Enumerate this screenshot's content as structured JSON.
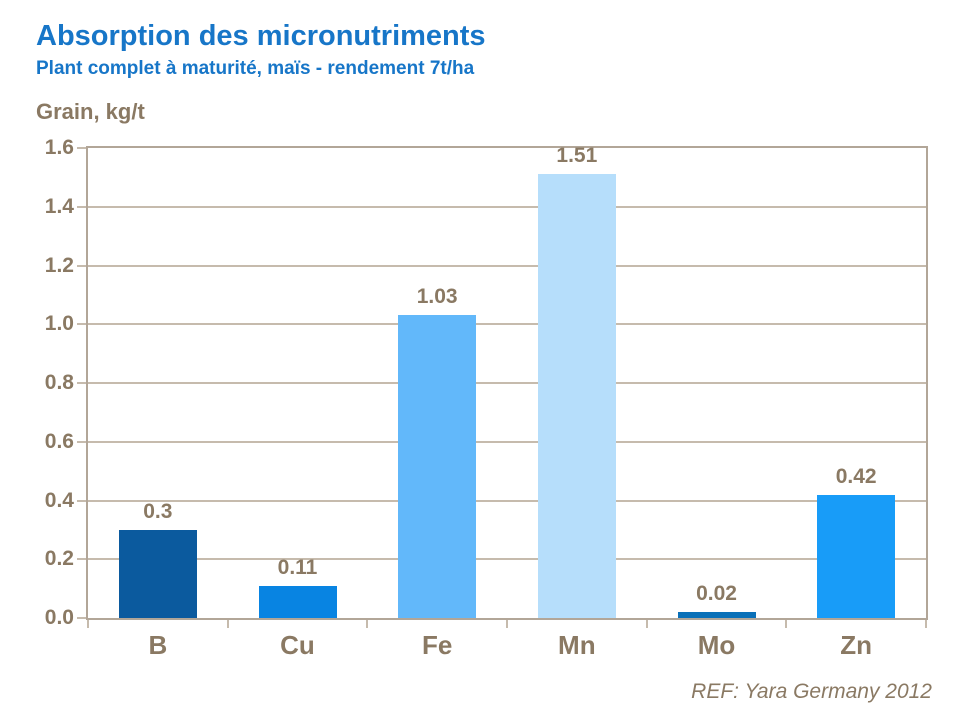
{
  "header": {
    "title": "Absorption des micronutriments",
    "subtitle": "Plant complet à maturité, maïs - rendement 7t/ha"
  },
  "footer": {
    "source": "REF: Yara Germany 2012"
  },
  "colors": {
    "title_blue": "#1776c8",
    "text_brown": "#8a7963",
    "grid": "#c6bbad",
    "axis_border": "#b2a698"
  },
  "chart_data": {
    "type": "bar",
    "title": "Absorption des micronutriments",
    "subtitle": "Plant complet à maturité, maïs - rendement 7t/ha",
    "ylabel": "Grain, kg/t",
    "xlabel": "",
    "categories": [
      "B",
      "Cu",
      "Fe",
      "Mn",
      "Mo",
      "Zn"
    ],
    "values": [
      0.3,
      0.11,
      1.03,
      1.51,
      0.02,
      0.42
    ],
    "value_labels": [
      "0.3",
      "0.11",
      "1.03",
      "1.51",
      "0.02",
      "0.42"
    ],
    "bar_colors": [
      "#0b5a9e",
      "#0884e2",
      "#62b8fa",
      "#b6defb",
      "#0a70b8",
      "#189cf8"
    ],
    "ylim": [
      0,
      1.6
    ],
    "yticks": [
      "0.0",
      "0.2",
      "0.4",
      "0.6",
      "0.8",
      "1.0",
      "1.2",
      "1.4",
      "1.6"
    ],
    "grid": "horizontal",
    "legend": "none",
    "source": "REF: Yara Germany 2012"
  }
}
